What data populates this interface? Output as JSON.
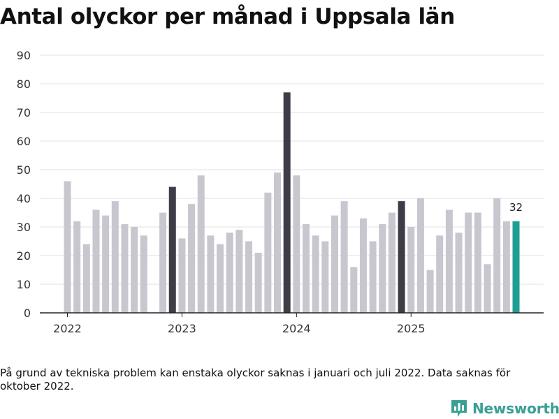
{
  "chart_data": {
    "type": "bar",
    "title": "Antal olyckor per månad i Uppsala län",
    "xlabel": "",
    "ylabel": "",
    "ylim": [
      0,
      90
    ],
    "yticks": [
      0,
      10,
      20,
      30,
      40,
      50,
      60,
      70,
      80,
      90
    ],
    "grid": true,
    "x_tick_labels": [
      {
        "label": "2022",
        "month_index": 0
      },
      {
        "label": "2023",
        "month_index": 12
      },
      {
        "label": "2024",
        "month_index": 24
      },
      {
        "label": "2025",
        "month_index": 36
      }
    ],
    "months": [
      "2022-01",
      "2022-02",
      "2022-03",
      "2022-04",
      "2022-05",
      "2022-06",
      "2022-07",
      "2022-08",
      "2022-09",
      "2022-10",
      "2022-11",
      "2022-12",
      "2023-01",
      "2023-02",
      "2023-03",
      "2023-04",
      "2023-05",
      "2023-06",
      "2023-07",
      "2023-08",
      "2023-09",
      "2023-10",
      "2023-11",
      "2023-12",
      "2024-01",
      "2024-02",
      "2024-03",
      "2024-04",
      "2024-05",
      "2024-06",
      "2024-07",
      "2024-08",
      "2024-09",
      "2024-10",
      "2024-11",
      "2024-12",
      "2025-01",
      "2025-02",
      "2025-03",
      "2025-04",
      "2025-05",
      "2025-06",
      "2025-07",
      "2025-08",
      "2025-09",
      "2025-10",
      "2025-11",
      "2025-12"
    ],
    "values": [
      46,
      32,
      24,
      36,
      34,
      39,
      31,
      30,
      27,
      null,
      35,
      44,
      26,
      38,
      48,
      27,
      24,
      28,
      29,
      25,
      21,
      42,
      49,
      77,
      48,
      31,
      27,
      25,
      34,
      39,
      16,
      33,
      25,
      31,
      35,
      39,
      30,
      40,
      15,
      27,
      36,
      28,
      35,
      35,
      17,
      40,
      32,
      32
    ],
    "highlight_december": true,
    "last_value_label": "32",
    "colors": {
      "default": "#c8c7cf",
      "december": "#3d3c47",
      "latest": "#1e9e92",
      "grid": "#e2e2e2",
      "axis": "#222222"
    }
  },
  "footnote": "På grund av tekniska problem kan enstaka olyckor saknas i januari och juli 2022. Data saknas för oktober 2022.",
  "brand": {
    "name": "Newsworthy",
    "icon": "newsworthy-bar-chart-icon",
    "color": "#3aa093"
  }
}
